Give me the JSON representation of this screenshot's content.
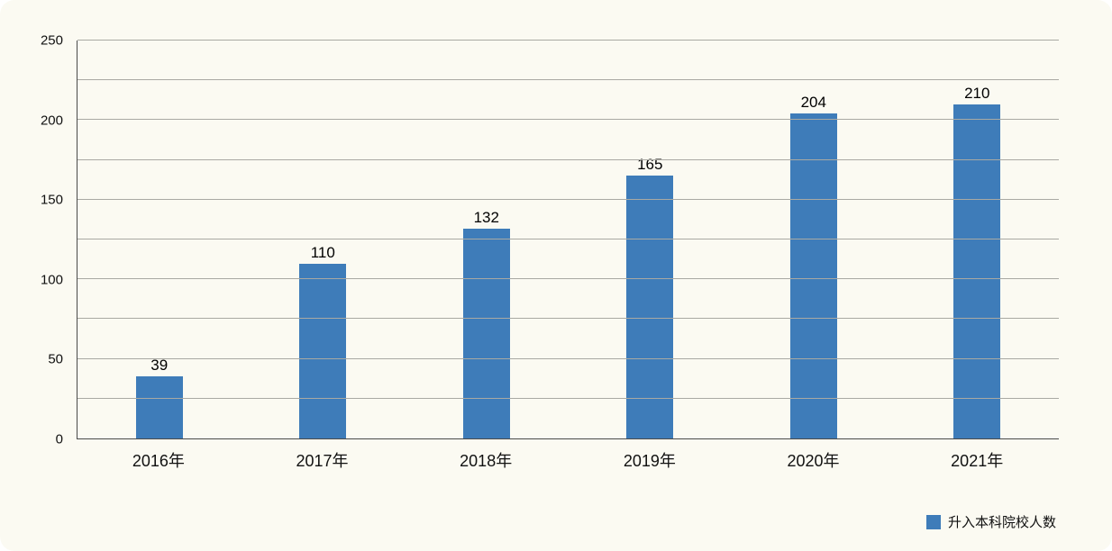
{
  "chart_data": {
    "type": "bar",
    "title": "",
    "categories": [
      "2016年",
      "2017年",
      "2018年",
      "2019年",
      "2020年",
      "2021年"
    ],
    "values": [
      39,
      110,
      132,
      165,
      204,
      210
    ],
    "xlabel": "",
    "ylabel": "",
    "ylim": [
      0,
      250
    ],
    "ytick_step": 50,
    "grid_step": 25,
    "grid": true,
    "legend_position": "bottom-right",
    "legend_label": "升入本科院校人数",
    "bar_color": "#3e7cb9",
    "background_color": "#fbfaf2",
    "axis_color": "#4a4a4a",
    "gridline_color": "#a9a9a3"
  }
}
